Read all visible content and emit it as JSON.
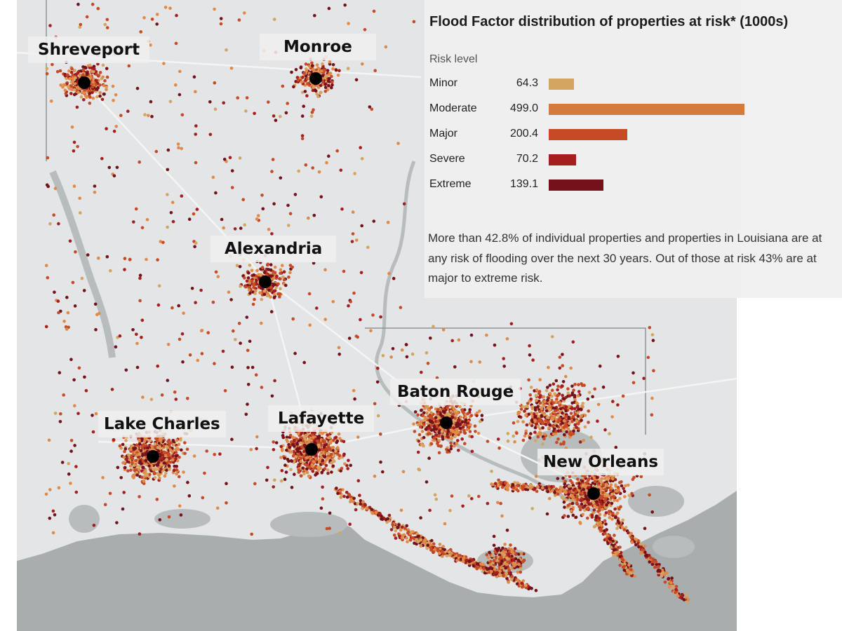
{
  "panel": {
    "title": "Flood Factor distribution of properties at risk* (1000s)",
    "risk_level_label": "Risk level",
    "note": "More than 42.8% of individual properties and properties in Louisiana are at any risk of flooding over the next 30 years. Out of those at risk 43% are at major to extreme risk."
  },
  "chart_data": {
    "type": "bar",
    "orientation": "horizontal",
    "title": "Flood Factor distribution of properties at risk* (1000s)",
    "ylabel": "Risk level",
    "categories": [
      "Minor",
      "Moderate",
      "Major",
      "Severe",
      "Extreme"
    ],
    "values": [
      64.3,
      499.0,
      200.4,
      70.2,
      139.1
    ],
    "value_labels": [
      "64.3",
      "499.0",
      "200.4",
      "70.2",
      "139.1"
    ],
    "colors": [
      "#d4a461",
      "#d47a3e",
      "#c64a26",
      "#a41e1e",
      "#74111a"
    ]
  },
  "cities": {
    "shreveport": "Shreveport",
    "monroe": "Monroe",
    "alexandria": "Alexandria",
    "lake_charles": "Lake Charles",
    "lafayette": "Lafayette",
    "baton_rouge": "Baton Rouge",
    "new_orleans": "New Orleans"
  },
  "colors": {
    "land": "#e3e5e6",
    "water": "#b7bcbc",
    "gulf": "#a8adae",
    "minor": "#d4a461",
    "moderate": "#e08a48",
    "major": "#c64a26",
    "severe": "#a41e1e",
    "extreme": "#74111a"
  }
}
